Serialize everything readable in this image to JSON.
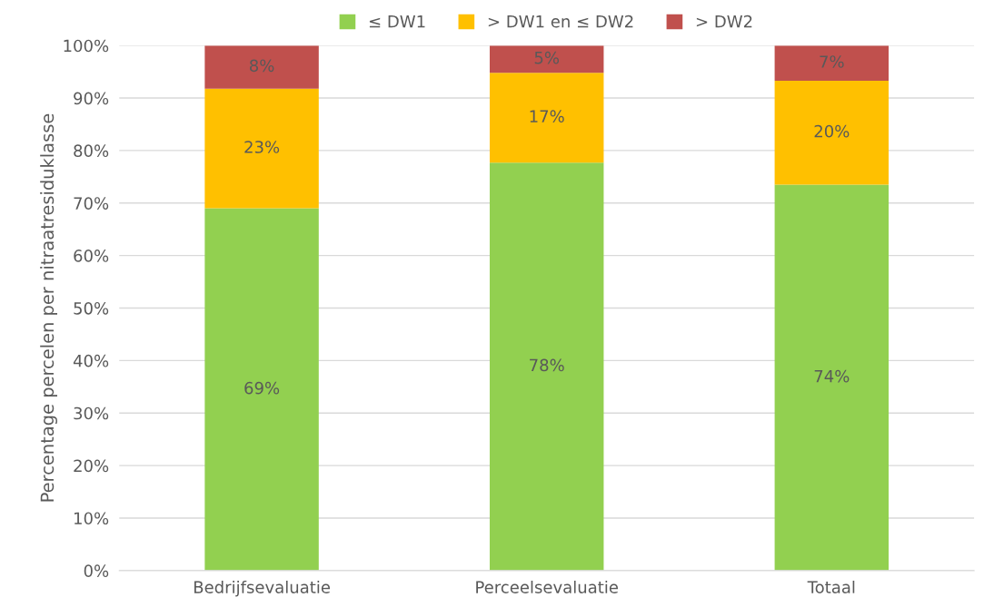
{
  "chart_data": {
    "type": "bar",
    "stacked": true,
    "ylabel": "Percentage percelen per nitraatresiduklasse",
    "categories": [
      "Bedrijfsevaluatie",
      "Perceelsevaluatie",
      "Totaal"
    ],
    "series": [
      {
        "name": "≤ DW1",
        "color": "#92d050",
        "values": [
          69,
          77.7,
          73.5
        ],
        "value_labels": [
          "69%",
          "78%",
          "74%"
        ]
      },
      {
        "name": "> DW1 en ≤ DW2",
        "color": "#ffc000",
        "values": [
          22.8,
          17.1,
          19.8
        ],
        "value_labels": [
          "23%",
          "17%",
          "20%"
        ]
      },
      {
        "name": "> DW2",
        "color": "#c0504d",
        "values": [
          8.2,
          5.2,
          6.7
        ],
        "value_labels": [
          "8%",
          "5%",
          "7%"
        ]
      }
    ],
    "ylim": [
      0,
      100
    ],
    "yticks": [
      {
        "value": 0,
        "label": "0%"
      },
      {
        "value": 10,
        "label": "10%"
      },
      {
        "value": 20,
        "label": "20%"
      },
      {
        "value": 30,
        "label": "30%"
      },
      {
        "value": 40,
        "label": "40%"
      },
      {
        "value": 50,
        "label": "50%"
      },
      {
        "value": 60,
        "label": "60%"
      },
      {
        "value": 70,
        "label": "70%"
      },
      {
        "value": 80,
        "label": "80%"
      },
      {
        "value": 90,
        "label": "90%"
      },
      {
        "value": 100,
        "label": "100%"
      }
    ],
    "grid": "y",
    "legend": "top"
  }
}
